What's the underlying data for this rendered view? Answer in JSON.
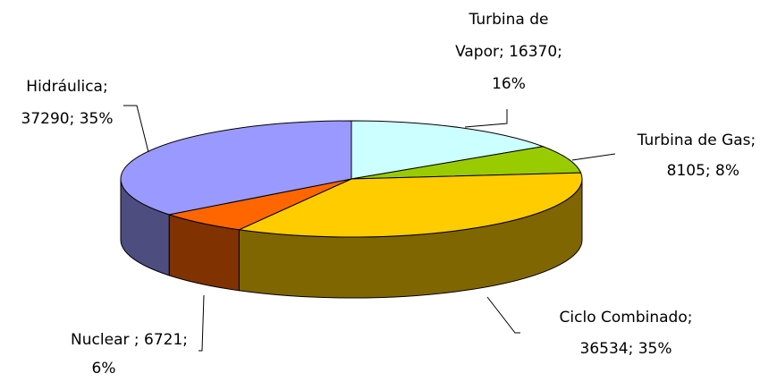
{
  "chart_data": {
    "type": "pie3d",
    "labels": [
      [
        "Turbina de",
        "Vapor; 16370;",
        "16%"
      ],
      [
        "Turbina de Gas;",
        "8105; 8%"
      ],
      [
        "Ciclo Combinado;",
        "36534; 35%"
      ],
      [
        "Nuclear ; 6721;",
        "6%"
      ],
      [
        "Hidráulica;",
        "37290; 35%"
      ]
    ],
    "values": [
      16370,
      8105,
      36534,
      6721,
      37290
    ],
    "colors": [
      "#ccffff",
      "#99cc00",
      "#ffcc00",
      "#ff6600",
      "#9999ff"
    ]
  }
}
